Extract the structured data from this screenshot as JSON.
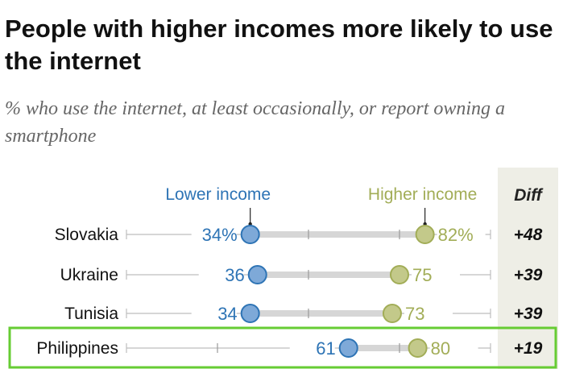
{
  "title": "People with higher incomes more likely to use the internet",
  "subtitle": "% who use the internet, at least occasionally, or report owning a smartphone",
  "colors": {
    "lower": "#2e74b5",
    "lower_fill": "#7ea9d8",
    "higher": "#a2ad57",
    "higher_fill": "#c3c98a",
    "diff_bg": "#eeeee6",
    "highlight": "#66cc33"
  },
  "chart_data": {
    "type": "dot-plot",
    "title": "People with higher incomes more likely to use the internet",
    "subtitle": "% who use the internet, at least occasionally, or report owning a smartphone",
    "xlim": [
      0,
      100
    ],
    "grid": "ticks at 25, 50, 75",
    "series": [
      {
        "name": "Lower income",
        "values": [
          34,
          36,
          34,
          61
        ]
      },
      {
        "name": "Higher income",
        "values": [
          82,
          75,
          73,
          80
        ]
      }
    ],
    "diff_header": "Diff",
    "rows": [
      {
        "country": "Slovakia",
        "lower": 34,
        "higher": 82,
        "lower_label": "34%",
        "higher_label": "82%",
        "diff": "+48",
        "highlighted": false
      },
      {
        "country": "Ukraine",
        "lower": 36,
        "higher": 75,
        "lower_label": "36",
        "higher_label": "75",
        "diff": "+39",
        "highlighted": false
      },
      {
        "country": "Tunisia",
        "lower": 34,
        "higher": 73,
        "lower_label": "34",
        "higher_label": "73",
        "diff": "+39",
        "highlighted": false
      },
      {
        "country": "Philippines",
        "lower": 61,
        "higher": 80,
        "lower_label": "61",
        "higher_label": "80",
        "diff": "+19",
        "highlighted": true
      }
    ]
  }
}
